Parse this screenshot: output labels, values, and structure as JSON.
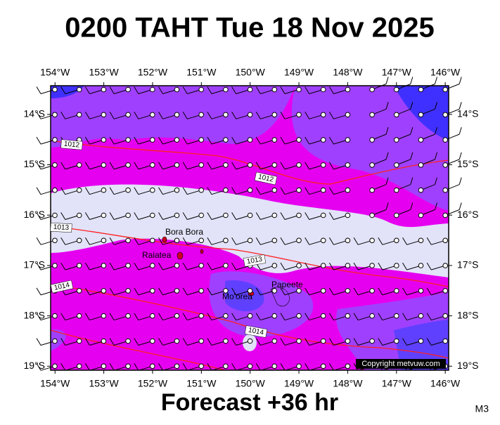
{
  "title": "0200 TAHT Tue 18 Nov 2025",
  "footer": "Forecast +36 hr",
  "model": "M3",
  "copyright": "Copyright metvuw.com",
  "map": {
    "lon_range": [
      -154.09,
      -145.93
    ],
    "lat_range": [
      -19.08,
      -13.43
    ],
    "lon_ticks": [
      {
        "value": -154,
        "label": "154°W"
      },
      {
        "value": -153,
        "label": "153°W"
      },
      {
        "value": -152,
        "label": "152°W"
      },
      {
        "value": -151,
        "label": "151°W"
      },
      {
        "value": -150,
        "label": "150°W"
      },
      {
        "value": -149,
        "label": "149°W"
      },
      {
        "value": -148,
        "label": "148°W"
      },
      {
        "value": -147,
        "label": "147°W"
      },
      {
        "value": -146,
        "label": "146°W"
      }
    ],
    "lat_ticks": [
      {
        "value": -14,
        "label": "14°S"
      },
      {
        "value": -15,
        "label": "15°S"
      },
      {
        "value": -16,
        "label": "16°S"
      },
      {
        "value": -17,
        "label": "17°S"
      },
      {
        "value": -18,
        "label": "18°S"
      },
      {
        "value": -19,
        "label": "19°S"
      }
    ],
    "places": [
      "Bora Bora",
      "Raiatea",
      "Mo'orea",
      "Papeete"
    ],
    "isobar_labels": [
      "1012",
      "1012",
      "1013",
      "1013",
      "1014",
      "1014"
    ]
  }
}
